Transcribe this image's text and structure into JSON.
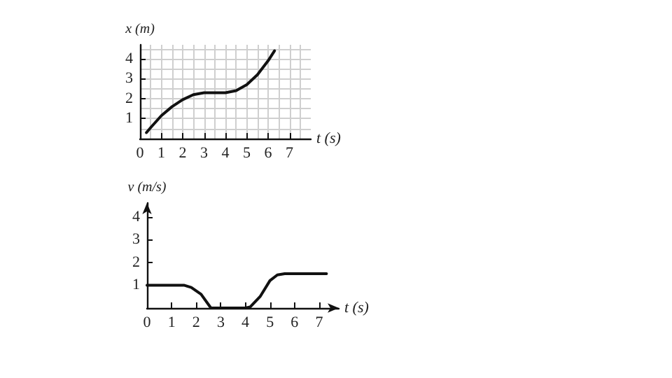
{
  "chart_data": [
    {
      "type": "line",
      "xlabel": "t (s)",
      "ylabel": "x (m)",
      "x": [
        0.3,
        0.5,
        1,
        1.5,
        2,
        2.5,
        3,
        3.5,
        4,
        4.5,
        5,
        5.5,
        6,
        6.3
      ],
      "series": [
        {
          "color": "#111111",
          "values": [
            0.3,
            0.55,
            1.15,
            1.6,
            1.95,
            2.2,
            2.3,
            2.3,
            2.3,
            2.4,
            2.7,
            3.2,
            3.9,
            4.4
          ]
        }
      ],
      "xlim": [
        0,
        8
      ],
      "xticks": [
        0,
        1,
        2,
        3,
        4,
        5,
        6,
        7
      ],
      "ylim": [
        0,
        4.7
      ],
      "yticks": [
        {
          "value": 0,
          "label": null
        },
        1,
        2,
        3,
        4
      ],
      "grid": true,
      "marker": "none",
      "line_style": "solid"
    },
    {
      "type": "line",
      "xlabel": "t (s)",
      "ylabel": "v (m/s)",
      "x": [
        0,
        1,
        1.5,
        1.8,
        2.2,
        2.6,
        3,
        4,
        4.2,
        4.6,
        5,
        5.3,
        5.6,
        7.3
      ],
      "series": [
        {
          "color": "#111111",
          "values": [
            1,
            1,
            1,
            0.9,
            0.6,
            0,
            0,
            0,
            0.05,
            0.5,
            1.2,
            1.45,
            1.5,
            1.5
          ]
        }
      ],
      "xlim": [
        0,
        7.8
      ],
      "xticks": [
        0,
        1,
        2,
        3,
        4,
        5,
        6,
        7
      ],
      "ylim": [
        0,
        4.6
      ],
      "yticks": [
        {
          "value": 0,
          "label": null
        },
        1,
        2,
        3,
        4
      ],
      "grid": false,
      "marker": "none",
      "line_style": "solid"
    }
  ]
}
